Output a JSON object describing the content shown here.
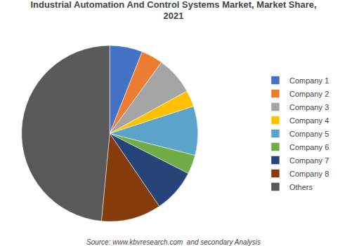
{
  "chart_data": {
    "type": "pie",
    "title": "Industrial Automation And Control Systems Market, Market Share,\n2021",
    "categories": [
      "Company 1",
      "Company 2",
      "Company 3",
      "Company 4",
      "Company 5",
      "Company 6",
      "Company 7",
      "Company 8",
      "Others"
    ],
    "values": [
      6,
      4,
      7,
      3,
      9,
      3.5,
      8,
      11,
      48.5
    ],
    "colors": [
      "#4472C4",
      "#ED7D31",
      "#A5A5A5",
      "#FFC000",
      "#5BA3C9",
      "#70AD47",
      "#264478",
      "#843C0C",
      "#595959"
    ],
    "annotations": [
      "Source: www.kbvresearch.com  and secondary Analysis"
    ],
    "legend": "right"
  }
}
